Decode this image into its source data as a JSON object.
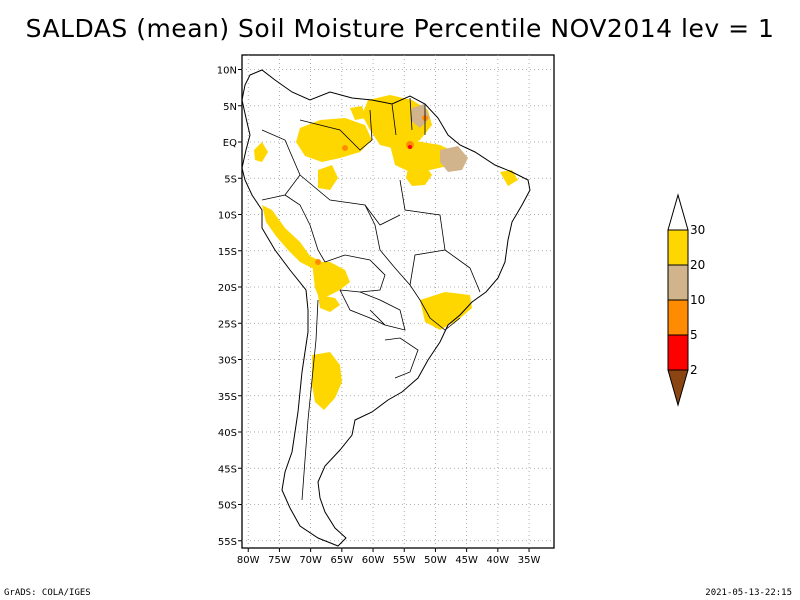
{
  "title": "SALDAS (mean) Soil Moisture Percentile NOV2014 lev = 1",
  "footer": {
    "left": "GrADS: COLA/IGES",
    "right": "2021-05-13-22:15"
  },
  "map": {
    "region": "South America",
    "lon_range": [
      -81,
      -31
    ],
    "lat_range": [
      -56,
      12
    ],
    "y_ticks": [
      {
        "value": 10,
        "label": "10N"
      },
      {
        "value": 5,
        "label": "5N"
      },
      {
        "value": 0,
        "label": "EQ"
      },
      {
        "value": -5,
        "label": "5S"
      },
      {
        "value": -10,
        "label": "10S"
      },
      {
        "value": -15,
        "label": "15S"
      },
      {
        "value": -20,
        "label": "20S"
      },
      {
        "value": -25,
        "label": "25S"
      },
      {
        "value": -30,
        "label": "30S"
      },
      {
        "value": -35,
        "label": "35S"
      },
      {
        "value": -40,
        "label": "40S"
      },
      {
        "value": -45,
        "label": "45S"
      },
      {
        "value": -50,
        "label": "50S"
      },
      {
        "value": -55,
        "label": "55S"
      }
    ],
    "x_ticks": [
      {
        "value": -80,
        "label": "80W"
      },
      {
        "value": -75,
        "label": "75W"
      },
      {
        "value": -70,
        "label": "70W"
      },
      {
        "value": -65,
        "label": "65W"
      },
      {
        "value": -60,
        "label": "60W"
      },
      {
        "value": -55,
        "label": "55W"
      },
      {
        "value": -50,
        "label": "50W"
      },
      {
        "value": -45,
        "label": "45W"
      },
      {
        "value": -40,
        "label": "40W"
      },
      {
        "value": -35,
        "label": "35W"
      }
    ]
  },
  "colorbar": {
    "labels": [
      "2",
      "5",
      "10",
      "20",
      "30"
    ],
    "colors": {
      "below": "#8b4513",
      "c1": "#ff0000",
      "c2": "#ff8c00",
      "c3": "#d2b48c",
      "c4": "#ffd700",
      "above": "#ffffff"
    }
  }
}
